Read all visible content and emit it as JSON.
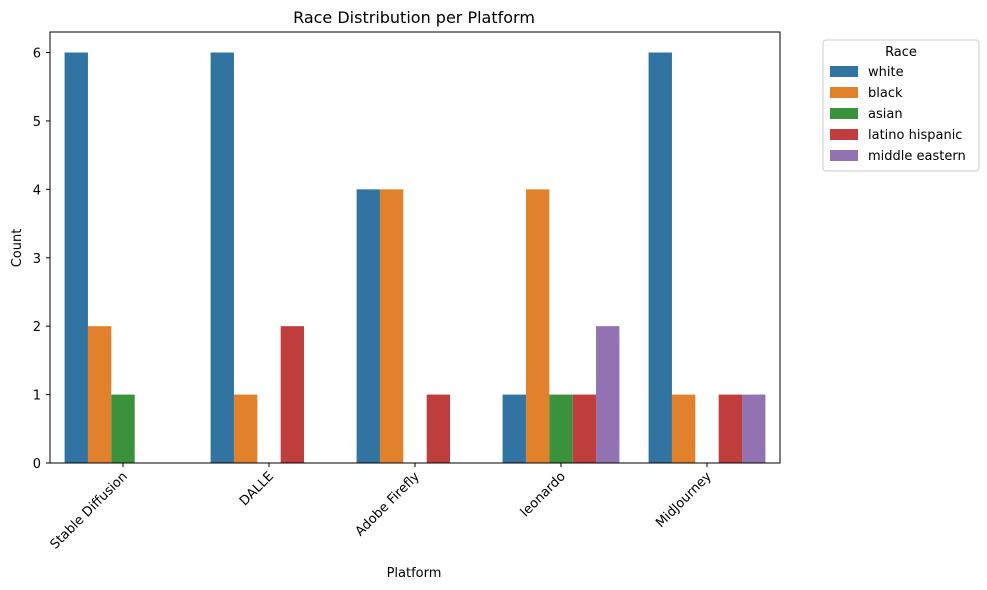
{
  "chart_data": {
    "type": "bar",
    "title": "Race Distribution per Platform",
    "xlabel": "Platform",
    "ylabel": "Count",
    "categories": [
      "Stable Diffusion",
      "DALLE",
      "Adobe Firefly",
      "leonardo",
      "MidJourney"
    ],
    "ylim": [
      0,
      6.3
    ],
    "yticks": [
      0,
      1,
      2,
      3,
      4,
      5,
      6
    ],
    "grid": false,
    "legend": {
      "title": "Race",
      "placement": "outside-top-right"
    },
    "series": [
      {
        "name": "white",
        "color": "#3274a1",
        "values": [
          6,
          6,
          4,
          1,
          6
        ]
      },
      {
        "name": "black",
        "color": "#e1812c",
        "values": [
          2,
          1,
          4,
          4,
          1
        ]
      },
      {
        "name": "asian",
        "color": "#3a923a",
        "values": [
          1,
          0,
          0,
          1,
          0
        ]
      },
      {
        "name": "latino hispanic",
        "color": "#c03d3e",
        "values": [
          0,
          2,
          1,
          1,
          1
        ]
      },
      {
        "name": "middle eastern",
        "color": "#9372b2",
        "values": [
          0,
          0,
          0,
          2,
          1
        ]
      }
    ]
  }
}
